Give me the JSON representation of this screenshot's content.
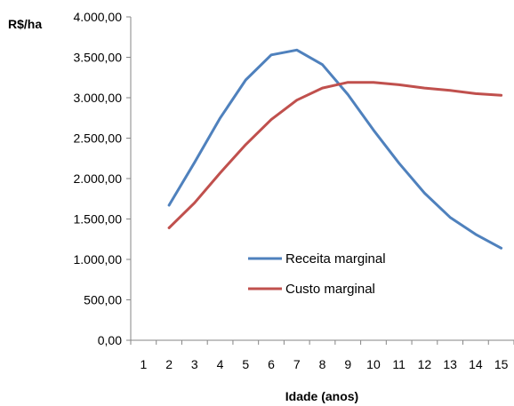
{
  "chart_data": {
    "type": "line",
    "xlabel": "Idade (anos)",
    "ylabel": "R$/ha",
    "categories": [
      "1",
      "2",
      "3",
      "4",
      "5",
      "6",
      "7",
      "8",
      "9",
      "10",
      "11",
      "12",
      "13",
      "14",
      "15"
    ],
    "yticks": [
      "0,00",
      "500,00",
      "1.000,00",
      "1.500,00",
      "2.000,00",
      "2.500,00",
      "3.000,00",
      "3.500,00",
      "4.000,00"
    ],
    "ylim": [
      0,
      4000
    ],
    "grid": false,
    "legend_position": "center",
    "series": [
      {
        "name": "Receita marginal",
        "color": "#4F81BD",
        "x": [
          2,
          3,
          4,
          5,
          6,
          7,
          8,
          9,
          10,
          11,
          12,
          13,
          14,
          15
        ],
        "values": [
          1670,
          2200,
          2750,
          3220,
          3530,
          3590,
          3410,
          3040,
          2600,
          2190,
          1820,
          1520,
          1310,
          1140
        ]
      },
      {
        "name": "Custo marginal",
        "color": "#C0504D",
        "x": [
          2,
          3,
          4,
          5,
          6,
          7,
          8,
          9,
          10,
          11,
          12,
          13,
          14,
          15
        ],
        "values": [
          1390,
          1700,
          2070,
          2420,
          2730,
          2970,
          3120,
          3190,
          3190,
          3160,
          3120,
          3090,
          3050,
          3030
        ]
      }
    ]
  }
}
